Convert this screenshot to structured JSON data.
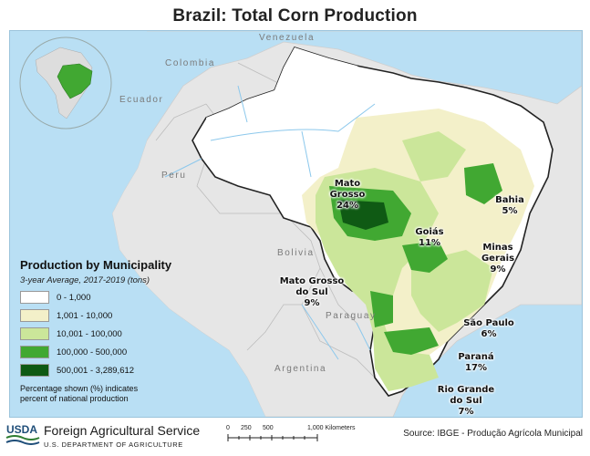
{
  "title": "Brazil: Total Corn Production",
  "colors": {
    "ocean": "#b9dff4",
    "land_other": "#e6e6e6",
    "brazil_base": "#ffffff",
    "class_1": "#ffffff",
    "class_2": "#f3f0c9",
    "class_3": "#cbe69a",
    "class_4": "#41a832",
    "class_5": "#0f5a14"
  },
  "countries": {
    "venezuela": "Venezuela",
    "colombia": "Colombia",
    "ecuador": "Ecuador",
    "peru": "Peru",
    "bolivia": "Bolivia",
    "paraguay": "Paraguay",
    "argentina": "Argentina"
  },
  "states": {
    "mato_grosso": {
      "name": "Mato Grosso",
      "share": "24%"
    },
    "goias": {
      "name": "Goiás",
      "share": "11%"
    },
    "bahia": {
      "name": "Bahia",
      "share": "5%"
    },
    "minas_gerais": {
      "name_line1": "Minas",
      "name_line2": "Gerais",
      "share": "9%"
    },
    "mato_grosso_do_sul": {
      "name_line1": "Mato Grosso",
      "name_line2": "do Sul",
      "share": "9%"
    },
    "sao_paulo": {
      "name": "São Paulo",
      "share": "6%"
    },
    "parana": {
      "name": "Paraná",
      "share": "17%"
    },
    "rio_grande_do_sul": {
      "name_line1": "Rio Grande",
      "name_line2": "do Sul",
      "share": "7%"
    }
  },
  "legend": {
    "title": "Production by Municipality",
    "subtitle": "3-year Average, 2017-2019 (tons)",
    "items": [
      {
        "label": "0 - 1,000",
        "color": "#ffffff"
      },
      {
        "label": "1,001 - 10,000",
        "color": "#f3f0c9"
      },
      {
        "label": "10,001 - 100,000",
        "color": "#cbe69a"
      },
      {
        "label": "100,000 - 500,000",
        "color": "#41a832"
      },
      {
        "label": "500,001 - 3,289,612",
        "color": "#0f5a14"
      }
    ],
    "note_line1": "Percentage shown (%) indicates",
    "note_line2": "percent of national production"
  },
  "footer": {
    "logo_text": "USDA",
    "agency": "Foreign Agricultural Service",
    "department": "U.S. DEPARTMENT OF AGRICULTURE",
    "scale_ticks": [
      "0",
      "250",
      "500",
      "1,000 Kilometers"
    ],
    "source": "Source: IBGE - Produção Agrícola Municipal"
  }
}
